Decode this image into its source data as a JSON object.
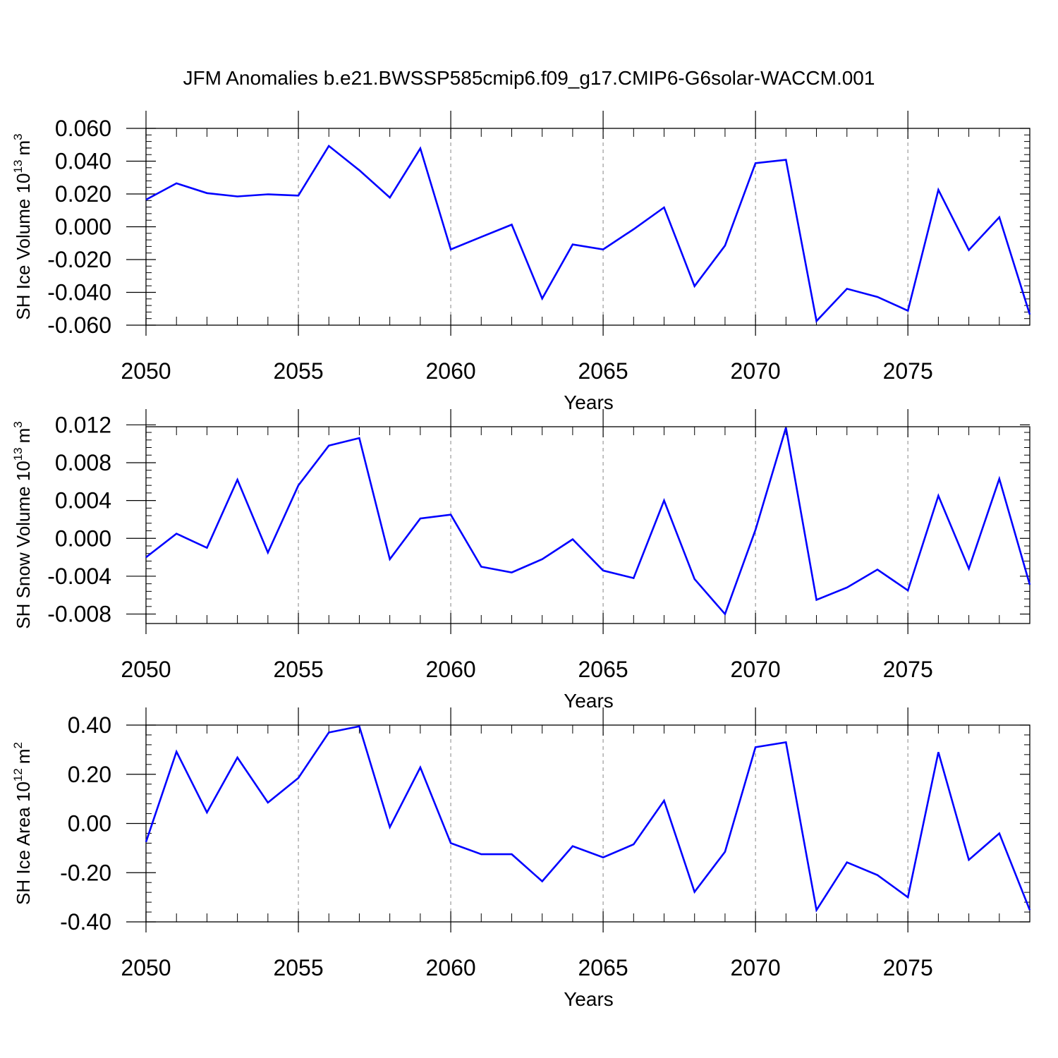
{
  "figure": {
    "title": "JFM Anomalies b.e21.BWSSP585cmip6.f09_g17.CMIP6-G6solar-WACCM.001"
  },
  "chart_data": [
    {
      "type": "line",
      "ylabel_main": "SH Ice Volume 10",
      "ylabel_exp": "13",
      "ylabel_unit": "m",
      "ylabel_unit_exp": "3",
      "xlabel": "Years",
      "xlim": [
        2050,
        2079
      ],
      "ylim": [
        -0.06,
        0.06
      ],
      "xticks": [
        2050,
        2055,
        2060,
        2065,
        2070,
        2075
      ],
      "xtick_labels": [
        "2050",
        "2055",
        "2060",
        "2065",
        "2070",
        "2075"
      ],
      "yticks": [
        0.06,
        0.04,
        0.02,
        0.0,
        -0.02,
        -0.04,
        -0.06
      ],
      "ytick_labels": [
        "0.060",
        "0.040",
        "0.020",
        "0.000",
        "-0.020",
        "-0.040",
        "-0.060"
      ],
      "line_color": "#0000ff",
      "grid": "vertical dashed at major x ticks",
      "series": [
        {
          "x": [
            2050,
            2051,
            2052,
            2053,
            2054,
            2055,
            2056,
            2057,
            2058,
            2059,
            2060,
            2061,
            2062,
            2063,
            2064,
            2065,
            2066,
            2067,
            2068,
            2069,
            2070,
            2071,
            2072,
            2073,
            2074,
            2075,
            2076,
            2077,
            2078,
            2079
          ],
          "values": [
            0.0165,
            0.0265,
            0.0205,
            0.0185,
            0.0198,
            0.019,
            0.0493,
            0.0345,
            0.0178,
            0.0478,
            -0.0138,
            -0.0062,
            0.0013,
            -0.0438,
            -0.0108,
            -0.0138,
            -0.0015,
            0.0118,
            -0.0362,
            -0.0115,
            0.0388,
            0.0408,
            -0.0575,
            -0.0378,
            -0.0428,
            -0.0512,
            0.0225,
            -0.0142,
            0.0058,
            -0.0535
          ]
        }
      ]
    },
    {
      "type": "line",
      "ylabel_main": "SH Snow Volume 10",
      "ylabel_exp": "13",
      "ylabel_unit": "m",
      "ylabel_unit_exp": "3",
      "xlabel": "Years",
      "xlim": [
        2050,
        2079
      ],
      "ylim": [
        -0.009,
        0.0118
      ],
      "xticks": [
        2050,
        2055,
        2060,
        2065,
        2070,
        2075
      ],
      "xtick_labels": [
        "2050",
        "2055",
        "2060",
        "2065",
        "2070",
        "2075"
      ],
      "yticks": [
        0.012,
        0.008,
        0.004,
        0.0,
        -0.004,
        -0.008
      ],
      "ytick_labels": [
        "0.012",
        "0.008",
        "0.004",
        "0.000",
        "-0.004",
        "-0.008"
      ],
      "line_color": "#0000ff",
      "grid": "vertical dashed at major x ticks",
      "series": [
        {
          "x": [
            2050,
            2051,
            2052,
            2053,
            2054,
            2055,
            2056,
            2057,
            2058,
            2059,
            2060,
            2061,
            2062,
            2063,
            2064,
            2065,
            2066,
            2067,
            2068,
            2069,
            2070,
            2071,
            2072,
            2073,
            2074,
            2075,
            2076,
            2077,
            2078,
            2079
          ],
          "values": [
            -0.002,
            0.0005,
            -0.001,
            0.0062,
            -0.0015,
            0.0056,
            0.0098,
            0.0106,
            -0.0022,
            0.0021,
            0.0025,
            -0.003,
            -0.0036,
            -0.0022,
            -0.0001,
            -0.0034,
            -0.0042,
            0.004,
            -0.0043,
            -0.008,
            0.0009,
            0.0117,
            -0.0065,
            -0.0052,
            -0.0033,
            -0.0055,
            0.0045,
            -0.0032,
            0.0063,
            -0.0049
          ]
        }
      ]
    },
    {
      "type": "line",
      "ylabel_main": "SH Ice Area 10",
      "ylabel_exp": "12",
      "ylabel_unit": "m",
      "ylabel_unit_exp": "2",
      "xlabel": "Years",
      "xlim": [
        2050,
        2079
      ],
      "ylim": [
        -0.4,
        0.4
      ],
      "xticks": [
        2050,
        2055,
        2060,
        2065,
        2070,
        2075
      ],
      "xtick_labels": [
        "2050",
        "2055",
        "2060",
        "2065",
        "2070",
        "2075"
      ],
      "yticks": [
        0.4,
        0.2,
        0.0,
        -0.2,
        -0.4
      ],
      "ytick_labels": [
        "0.40",
        "0.20",
        "0.00",
        "-0.20",
        "-0.40"
      ],
      "line_color": "#0000ff",
      "grid": "vertical dashed at major x ticks",
      "series": [
        {
          "x": [
            2050,
            2051,
            2052,
            2053,
            2054,
            2055,
            2056,
            2057,
            2058,
            2059,
            2060,
            2061,
            2062,
            2063,
            2064,
            2065,
            2066,
            2067,
            2068,
            2069,
            2070,
            2071,
            2072,
            2073,
            2074,
            2075,
            2076,
            2077,
            2078,
            2079
          ],
          "values": [
            -0.075,
            0.292,
            0.045,
            0.268,
            0.085,
            0.185,
            0.37,
            0.395,
            -0.015,
            0.228,
            -0.08,
            -0.125,
            -0.125,
            -0.235,
            -0.092,
            -0.138,
            -0.085,
            0.093,
            -0.278,
            -0.115,
            0.31,
            0.33,
            -0.352,
            -0.158,
            -0.21,
            -0.3,
            0.29,
            -0.148,
            -0.04,
            -0.352
          ]
        }
      ]
    }
  ]
}
